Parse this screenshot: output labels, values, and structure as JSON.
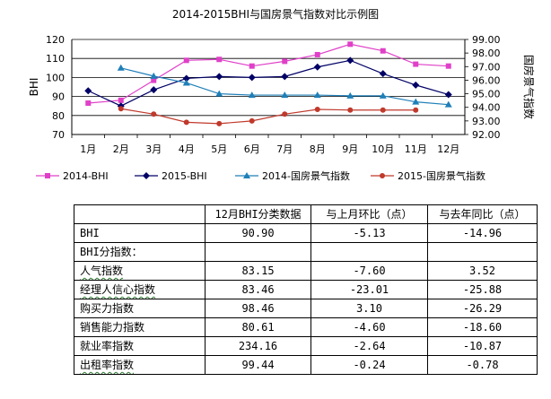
{
  "chart_data": {
    "type": "line",
    "title": "2014-2015BHI与国房景气指数对比示例图",
    "categories": [
      "1月",
      "2月",
      "3月",
      "4月",
      "5月",
      "6月",
      "7月",
      "8月",
      "9月",
      "10月",
      "11月",
      "12月"
    ],
    "ylabel_left": "BHI",
    "ylabel_right": "国房景气指数",
    "ylim_left": [
      70,
      120
    ],
    "yticks_left": [
      "120",
      "110",
      "100",
      "90",
      "80",
      "70"
    ],
    "ylim_right": [
      92,
      99
    ],
    "yticks_right": [
      "99.00",
      "98.00",
      "97.00",
      "96.00",
      "95.00",
      "94.00",
      "93.00",
      "92.00"
    ],
    "series": [
      {
        "name": "2014-BHI",
        "axis": "left",
        "color": "#e040c8",
        "marker": "square",
        "values": [
          86.5,
          88,
          98.5,
          109,
          109.5,
          106,
          108.5,
          112,
          117.5,
          114,
          107,
          106
        ]
      },
      {
        "name": "2015-BHI",
        "axis": "left",
        "color": "#000066",
        "marker": "diamond",
        "values": [
          93,
          85,
          93.5,
          99.5,
          100.5,
          100,
          100.5,
          105.5,
          109,
          102,
          96,
          91
        ]
      },
      {
        "name": "2014-国房景气指数",
        "axis": "right",
        "color": "#1f7fb8",
        "marker": "triangle",
        "values": [
          null,
          96.9,
          96.3,
          95.8,
          95.0,
          94.9,
          94.9,
          94.9,
          94.85,
          94.85,
          94.4,
          94.2
        ]
      },
      {
        "name": "2015-国房景气指数",
        "axis": "right",
        "color": "#c0392b",
        "marker": "circle",
        "values": [
          null,
          93.9,
          93.5,
          92.9,
          92.8,
          93.0,
          93.5,
          93.85,
          93.8,
          93.8,
          93.8,
          null
        ]
      }
    ]
  },
  "table": {
    "header": [
      "",
      "12月BHI分类数据",
      "与上月环比（点）",
      "与去年同比（点）"
    ],
    "bhi_row": {
      "label": "BHI",
      "values": [
        "90.90",
        "-5.13",
        "-14.96"
      ]
    },
    "section_label": "BHI分指数：",
    "rows": [
      {
        "label": "人气指数",
        "values": [
          "83.15",
          "-7.60",
          "3.52"
        ]
      },
      {
        "label": "经理人信心指数",
        "values": [
          "83.46",
          "-23.01",
          "-25.88"
        ]
      },
      {
        "label": "购买力指数",
        "values": [
          "98.46",
          "3.10",
          "-26.29"
        ]
      },
      {
        "label": "销售能力指数",
        "values": [
          "80.61",
          "-4.60",
          "-18.60"
        ]
      },
      {
        "label": "就业率指数",
        "values": [
          "234.16",
          "-2.64",
          "-10.87"
        ]
      },
      {
        "label": "出租率指数",
        "values": [
          "99.44",
          "-0.24",
          "-0.78"
        ]
      }
    ]
  }
}
